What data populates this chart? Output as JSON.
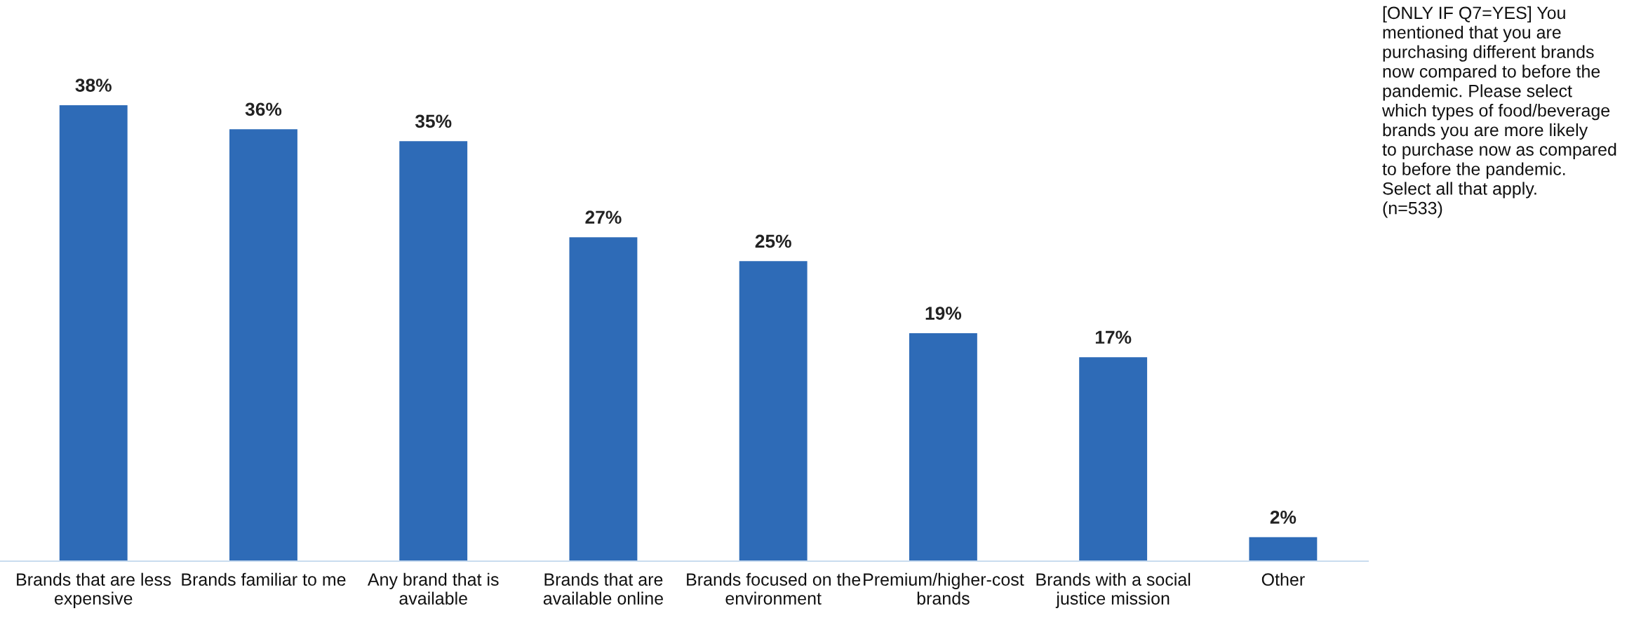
{
  "chart_data": {
    "type": "bar",
    "categories": [
      "Brands that are less expensive",
      "Brands familiar to me",
      "Any brand that is available",
      "Brands that are available online",
      "Brands focused on the environment",
      "Premium/higher-cost brands",
      "Brands with a social justice mission",
      "Other"
    ],
    "values": [
      38,
      36,
      35,
      27,
      25,
      19,
      17,
      2
    ],
    "value_labels": [
      "38%",
      "36%",
      "35%",
      "27%",
      "25%",
      "19%",
      "17%",
      "2%"
    ],
    "color": "#2e6bb7",
    "annotations": [
      "[ONLY IF Q7=YES] You mentioned that you are purchasing different brands now compared to before the pandemic. Please select which types of food/beverage brands you are more likely to purchase now as compared to before the pandemic. Select all that apply. (n=533)"
    ],
    "grid": false,
    "legend": false
  }
}
